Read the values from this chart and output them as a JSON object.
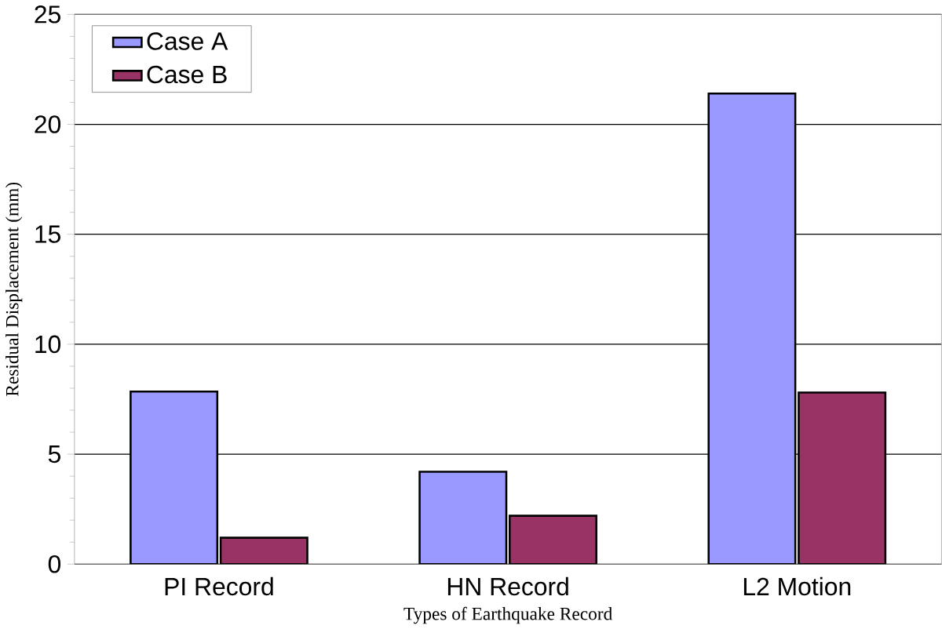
{
  "chart_data": {
    "type": "bar",
    "xlabel": "Types of Earthquake Record",
    "ylabel": "Residual Displacement (mm)",
    "categories": [
      "PI Record",
      "HN Record",
      "L2 Motion"
    ],
    "series": [
      {
        "name": "Case A",
        "color": "#9999ff",
        "values": [
          7.85,
          4.2,
          21.4
        ]
      },
      {
        "name": "Case B",
        "color": "#993366",
        "values": [
          1.2,
          2.2,
          7.8
        ]
      }
    ],
    "ylim": [
      0,
      25
    ],
    "yticks": [
      0,
      5,
      10,
      15,
      20,
      25
    ],
    "grid": "y",
    "legend": "top left"
  }
}
